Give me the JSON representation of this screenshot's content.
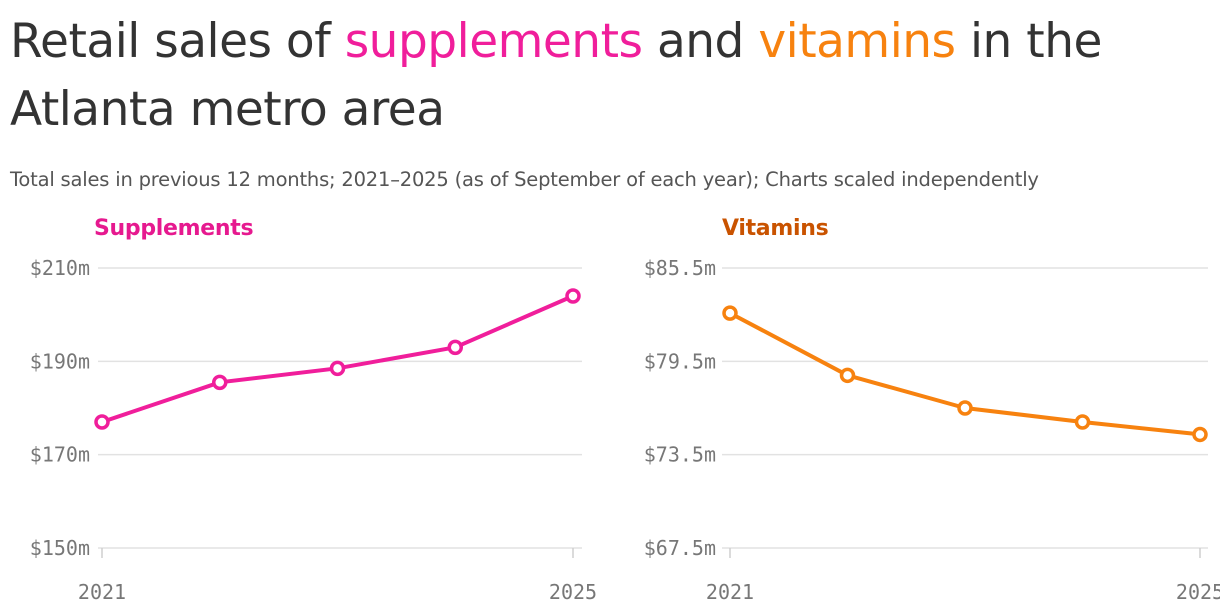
{
  "title": {
    "part1": "Retail sales of ",
    "supplements_word": "supplements",
    "part2": " and ",
    "vitamins_word": "vitamins",
    "part3": " in the Atlanta metro area"
  },
  "subtitle": "Total sales in previous 12 months; 2021–2025 (as of September of each year); Charts scaled independently",
  "colors": {
    "supplements": "#f01e9b",
    "supplements_label": "#e6198f",
    "vitamins": "#f7820f",
    "vitamins_label": "#c95300",
    "grid": "#e2e2e2",
    "text": "#333333"
  },
  "chart_data": [
    {
      "type": "line",
      "title": "Supplements",
      "x": [
        2021,
        2022,
        2023,
        2024,
        2025
      ],
      "values": [
        177.0,
        185.5,
        188.5,
        193.0,
        204.0
      ],
      "unit": "millions USD",
      "ylim": [
        150,
        210
      ],
      "yticks": [
        150,
        170,
        190,
        210
      ],
      "ytick_labels": [
        "$150m",
        "$170m",
        "$190m",
        "$210m"
      ],
      "xticks": [
        2021,
        2025
      ],
      "xtick_labels": [
        "2021",
        "2025"
      ],
      "color": "#f01e9b"
    },
    {
      "type": "line",
      "title": "Vitamins",
      "x": [
        2021,
        2022,
        2023,
        2024,
        2025
      ],
      "values": [
        82.6,
        78.6,
        76.5,
        75.6,
        74.8
      ],
      "unit": "millions USD",
      "ylim": [
        67.5,
        85.5
      ],
      "yticks": [
        67.5,
        73.5,
        79.5,
        85.5
      ],
      "ytick_labels": [
        "$67.5m",
        "$73.5m",
        "$79.5m",
        "$85.5m"
      ],
      "xticks": [
        2021,
        2025
      ],
      "xtick_labels": [
        "2021",
        "2025"
      ],
      "color": "#f7820f"
    }
  ]
}
